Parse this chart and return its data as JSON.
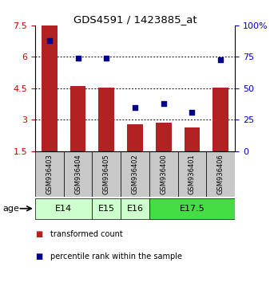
{
  "title": "GDS4591 / 1423885_at",
  "samples": [
    "GSM936403",
    "GSM936404",
    "GSM936405",
    "GSM936402",
    "GSM936400",
    "GSM936401",
    "GSM936406"
  ],
  "transformed_counts": [
    7.5,
    4.6,
    4.55,
    2.8,
    2.85,
    2.65,
    4.55
  ],
  "percentile_ranks": [
    88,
    74,
    74,
    35,
    38,
    31,
    73
  ],
  "ylim_left": [
    1.5,
    7.5
  ],
  "ylim_right": [
    0,
    100
  ],
  "yticks_left": [
    1.5,
    3.0,
    4.5,
    6.0,
    7.5
  ],
  "yticks_right": [
    0,
    25,
    50,
    75,
    100
  ],
  "bar_color": "#b22222",
  "scatter_color": "#00008b",
  "age_group_spans": [
    {
      "label": "E14",
      "start": 0,
      "end": 1,
      "color": "#ccffcc"
    },
    {
      "label": "E15",
      "start": 2,
      "end": 2,
      "color": "#ccffcc"
    },
    {
      "label": "E16",
      "start": 3,
      "end": 3,
      "color": "#ccffcc"
    },
    {
      "label": "E17.5",
      "start": 4,
      "end": 6,
      "color": "#44dd44"
    }
  ],
  "legend_bar_label": "transformed count",
  "legend_scatter_label": "percentile rank within the sample",
  "age_label": "age",
  "background_color": "#ffffff",
  "sample_bg_color": "#c8c8c8",
  "ytick_left_color": "#cc0000",
  "ytick_right_color": "#0000cc",
  "dotted_lines": [
    3.0,
    4.5,
    6.0
  ]
}
